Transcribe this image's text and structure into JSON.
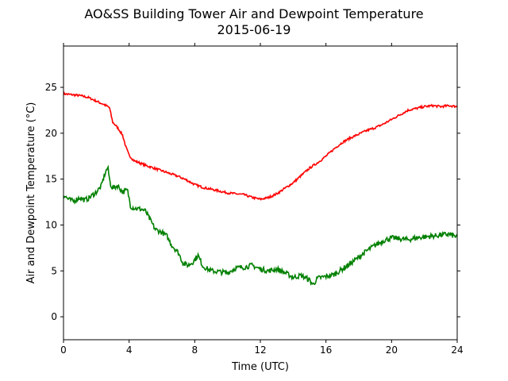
{
  "chart_data": {
    "type": "line",
    "title": "AO&SS Building Tower Air and Dewpoint Temperature",
    "subtitle": "2015-06-19",
    "xlabel": "Time (UTC)",
    "ylabel": "Air and Dewpoint Temperature (°C)",
    "xlim": [
      0,
      24
    ],
    "ylim": [
      -2.5,
      29.5
    ],
    "x_ticks": [
      0,
      4,
      8,
      12,
      16,
      20,
      24
    ],
    "y_ticks": [
      0,
      5,
      10,
      15,
      20,
      25
    ],
    "grid": false,
    "legend": "none",
    "series": [
      {
        "color": "#ff0000",
        "x": [
          0,
          0.5,
          1.0,
          1.5,
          2.0,
          2.5,
          2.8,
          3.0,
          3.3,
          3.6,
          3.8,
          4.0,
          4.3,
          4.6,
          5.0,
          5.5,
          6.0,
          6.5,
          7.0,
          7.5,
          8.0,
          8.5,
          9.0,
          9.5,
          10.0,
          10.5,
          11.0,
          11.5,
          12.0,
          12.5,
          13.0,
          13.5,
          14.0,
          14.5,
          15.0,
          15.5,
          16.0,
          16.5,
          17.0,
          17.5,
          18.0,
          18.5,
          19.0,
          19.5,
          20.0,
          20.5,
          21.0,
          21.5,
          22.0,
          22.5,
          23.0,
          23.5,
          24.0
        ],
        "values": [
          24.3,
          24.2,
          24.1,
          23.9,
          23.5,
          23.1,
          22.8,
          21.2,
          20.6,
          19.8,
          18.5,
          17.6,
          17.0,
          16.8,
          16.5,
          16.2,
          15.9,
          15.6,
          15.3,
          14.9,
          14.4,
          14.1,
          13.9,
          13.7,
          13.5,
          13.4,
          13.3,
          13.0,
          12.8,
          13.0,
          13.4,
          14.0,
          14.6,
          15.4,
          16.2,
          16.8,
          17.5,
          18.3,
          19.0,
          19.5,
          19.9,
          20.3,
          20.6,
          21.0,
          21.5,
          22.0,
          22.5,
          22.7,
          22.9,
          23.0,
          22.9,
          23.0,
          22.9
        ]
      },
      {
        "color": "#008000",
        "x": [
          0,
          0.3,
          0.6,
          1.0,
          1.3,
          1.6,
          2.0,
          2.3,
          2.5,
          2.7,
          2.85,
          3.0,
          3.3,
          3.6,
          3.9,
          4.1,
          4.4,
          4.8,
          5.0,
          5.3,
          5.6,
          6.0,
          6.3,
          6.6,
          7.0,
          7.3,
          7.6,
          7.9,
          8.2,
          8.5,
          9.0,
          9.5,
          10.0,
          10.5,
          11.0,
          11.5,
          12.0,
          12.5,
          13.0,
          13.5,
          14.0,
          14.5,
          15.0,
          15.2,
          15.5,
          16.0,
          16.5,
          17.0,
          17.5,
          18.0,
          18.5,
          19.0,
          19.5,
          20.0,
          20.5,
          21.0,
          21.5,
          22.0,
          22.5,
          23.0,
          23.5,
          24.0
        ],
        "values": [
          13.3,
          12.8,
          12.6,
          13.0,
          12.7,
          13.0,
          13.6,
          14.2,
          15.5,
          16.3,
          14.5,
          14.0,
          14.3,
          13.6,
          13.8,
          12.0,
          11.8,
          11.7,
          11.5,
          10.5,
          9.5,
          9.2,
          8.8,
          7.8,
          7.0,
          5.8,
          5.6,
          6.0,
          6.7,
          5.5,
          5.0,
          4.9,
          4.8,
          5.3,
          5.4,
          5.6,
          5.2,
          5.0,
          5.2,
          4.8,
          4.3,
          4.5,
          4.0,
          3.5,
          4.2,
          4.4,
          4.6,
          5.2,
          5.8,
          6.5,
          7.2,
          7.8,
          8.3,
          8.6,
          8.5,
          8.4,
          8.6,
          8.7,
          8.8,
          8.9,
          9.0,
          8.7
        ]
      }
    ]
  }
}
